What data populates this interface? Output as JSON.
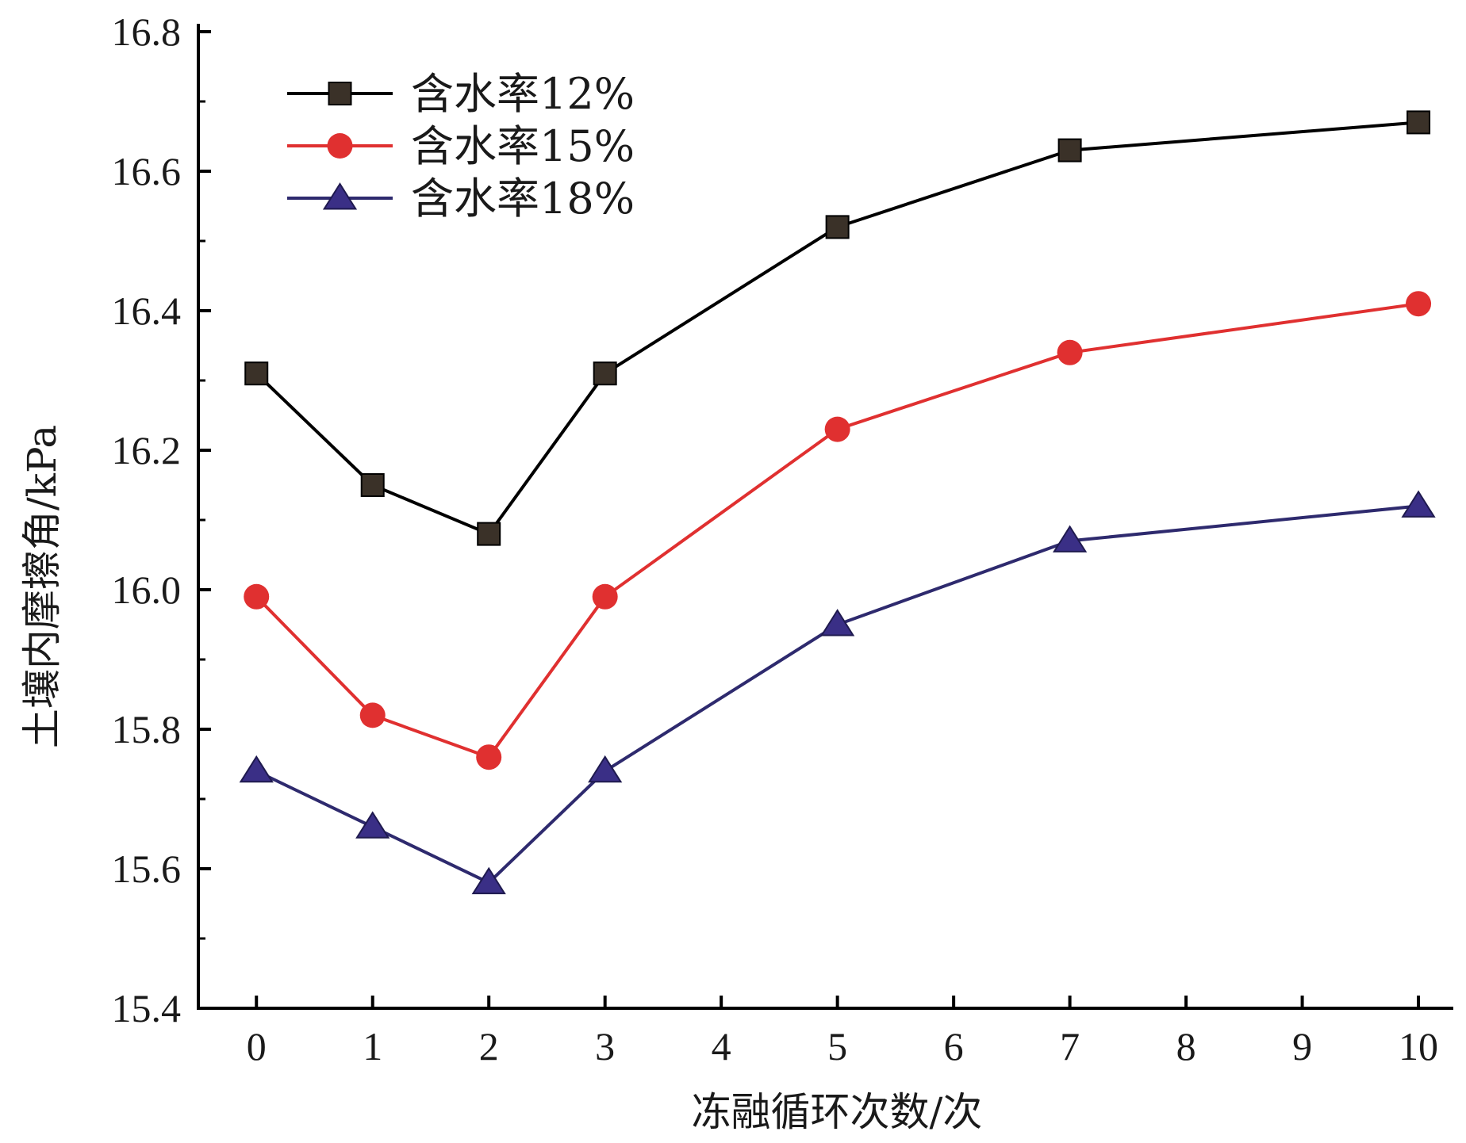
{
  "chart_data": {
    "type": "line",
    "title": "",
    "xlabel": "冻融循环次数/次",
    "ylabel": "土壤内摩擦角/kPa",
    "x": [
      0,
      1,
      2,
      3,
      5,
      7,
      10
    ],
    "xlim": [
      -0.5,
      10.3
    ],
    "ylim": [
      15.4,
      16.8
    ],
    "x_ticks": [
      0,
      1,
      2,
      3,
      4,
      5,
      6,
      7,
      8,
      9,
      10
    ],
    "y_ticks": [
      15.4,
      15.6,
      15.8,
      16.0,
      16.2,
      16.4,
      16.6,
      16.8
    ],
    "x_tick_labels": [
      "0",
      "1",
      "2",
      "3",
      "4",
      "5",
      "6",
      "7",
      "8",
      "9",
      "10"
    ],
    "y_tick_labels": [
      "15.4",
      "15.6",
      "15.8",
      "16.0",
      "16.2",
      "16.4",
      "16.6",
      "16.8"
    ],
    "grid": false,
    "legend_position": "top-left",
    "series": [
      {
        "name": "含水率12%",
        "marker": "square",
        "color": "#000000",
        "marker_color": "#3a3128",
        "values": [
          16.31,
          16.15,
          16.08,
          16.31,
          16.52,
          16.63,
          16.67
        ]
      },
      {
        "name": "含水率15%",
        "marker": "circle",
        "color": "#e03030",
        "marker_color": "#e03030",
        "values": [
          15.99,
          15.82,
          15.76,
          15.99,
          16.23,
          16.34,
          16.41
        ]
      },
      {
        "name": "含水率18%",
        "marker": "triangle",
        "color": "#2e2a6e",
        "marker_color": "#3a2f86",
        "values": [
          15.74,
          15.66,
          15.58,
          15.74,
          15.95,
          16.07,
          16.12
        ]
      }
    ]
  }
}
